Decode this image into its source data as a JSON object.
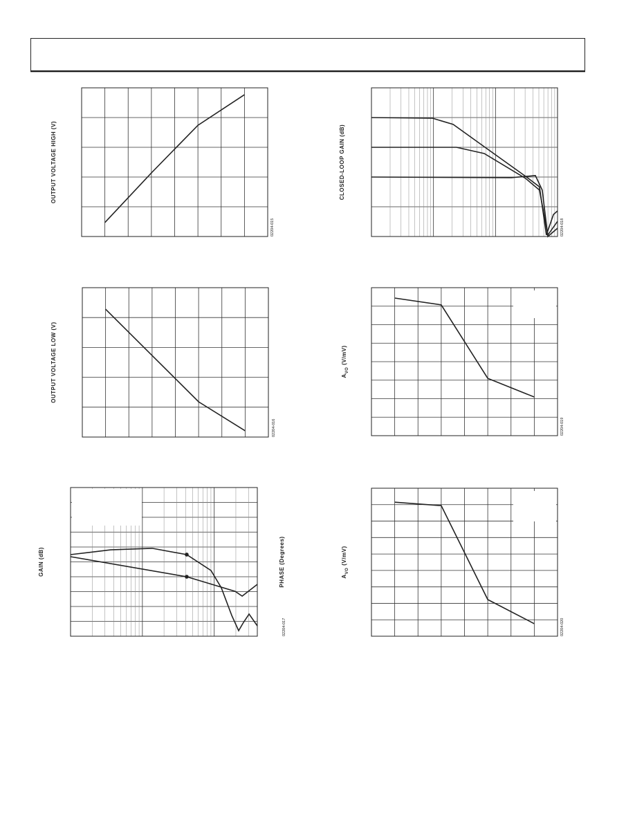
{
  "chart_data": [
    {
      "type": "line",
      "y_label": "OUTPUT VOLTAGE HIGH (V)",
      "figure_id": "02204-015",
      "xlim": [
        0,
        8
      ],
      "ylim": [
        0,
        5
      ],
      "grid": true,
      "series": [
        {
          "color": "#222222",
          "x": [
            1,
            3,
            5,
            7
          ],
          "values": [
            0.47,
            2.14,
            3.74,
            4.77
          ]
        }
      ]
    },
    {
      "type": "line",
      "y_label": "CLOSED-LOOP GAIN (dB)",
      "figure_id": "02204-018",
      "xlim": [
        0,
        10
      ],
      "ylim": [
        0,
        5
      ],
      "grid": true,
      "log_x": true,
      "series": [
        {
          "color": "#222222",
          "x": [
            0,
            3.27,
            4.39,
            6.06,
            8.29,
            9.03,
            9.4,
            9.78,
            10
          ],
          "values": [
            4,
            3.98,
            3.77,
            3.02,
            2.02,
            1.67,
            0.05,
            0.74,
            0.86
          ]
        },
        {
          "color": "#222222",
          "x": [
            0,
            4.57,
            6.06,
            8.29,
            9.03,
            9.48,
            10
          ],
          "values": [
            3,
            3,
            2.79,
            1.95,
            1.56,
            0.05,
            0.51
          ]
        },
        {
          "color": "#222222",
          "x": [
            0,
            7.51,
            8.81,
            9.18,
            9.48,
            10
          ],
          "values": [
            2,
            1.98,
            2.05,
            1.56,
            0,
            0.28
          ]
        }
      ]
    },
    {
      "type": "line",
      "y_label": "OUTPUT VOLTAGE LOW (V)",
      "figure_id": "02204-016",
      "xlim": [
        0,
        8
      ],
      "ylim": [
        0,
        5
      ],
      "grid": true,
      "series": [
        {
          "color": "#222222",
          "x": [
            1,
            5,
            7
          ],
          "values": [
            4.28,
            1.18,
            0.21
          ]
        }
      ]
    },
    {
      "type": "line",
      "y_label": "A",
      "y_label_sub": "VO",
      "y_label_unit": "(V/mV)",
      "figure_id": "02204-019",
      "xlim": [
        0,
        8
      ],
      "ylim": [
        0,
        8
      ],
      "grid": true,
      "series": [
        {
          "color": "#222222",
          "x": [
            1,
            3,
            5,
            7
          ],
          "values": [
            7.44,
            7.07,
            3.1,
            2.09
          ]
        }
      ]
    },
    {
      "type": "line",
      "y_label": "GAIN (dB)",
      "y2_label": "PHASE (Degrees)",
      "figure_id": "02204-017",
      "xlim": [
        0,
        10
      ],
      "ylim": [
        0,
        10
      ],
      "y2lim": [
        0,
        10
      ],
      "grid": true,
      "log_x": true,
      "series": [
        {
          "color": "#222222",
          "x": [
            0,
            6.22,
            8.81,
            9.19,
            10
          ],
          "values": [
            5.35,
            4.0,
            3.02,
            2.7,
            3.49
          ],
          "marker_points": [
            1
          ]
        },
        {
          "color": "#222222",
          "axis": "y2",
          "x": [
            0,
            2.15,
            4.37,
            6.22,
            7.52,
            8.07,
            8.63,
            9.0,
            9.26,
            9.56,
            10
          ],
          "values": [
            5.49,
            5.81,
            5.91,
            5.49,
            4.42,
            3.26,
            1.4,
            0.37,
            0.93,
            1.49,
            0.7
          ],
          "marker_points": [
            3
          ]
        }
      ]
    },
    {
      "type": "line",
      "y_label": "A",
      "y_label_sub": "VO",
      "y_label_unit": "(V/mV)",
      "figure_id": "02204-020",
      "xlim": [
        0,
        8
      ],
      "ylim": [
        0,
        9
      ],
      "grid": true,
      "series": [
        {
          "color": "#222222",
          "x": [
            1,
            3,
            5,
            7
          ],
          "values": [
            8.15,
            7.94,
            2.23,
            0.76
          ]
        }
      ]
    }
  ]
}
